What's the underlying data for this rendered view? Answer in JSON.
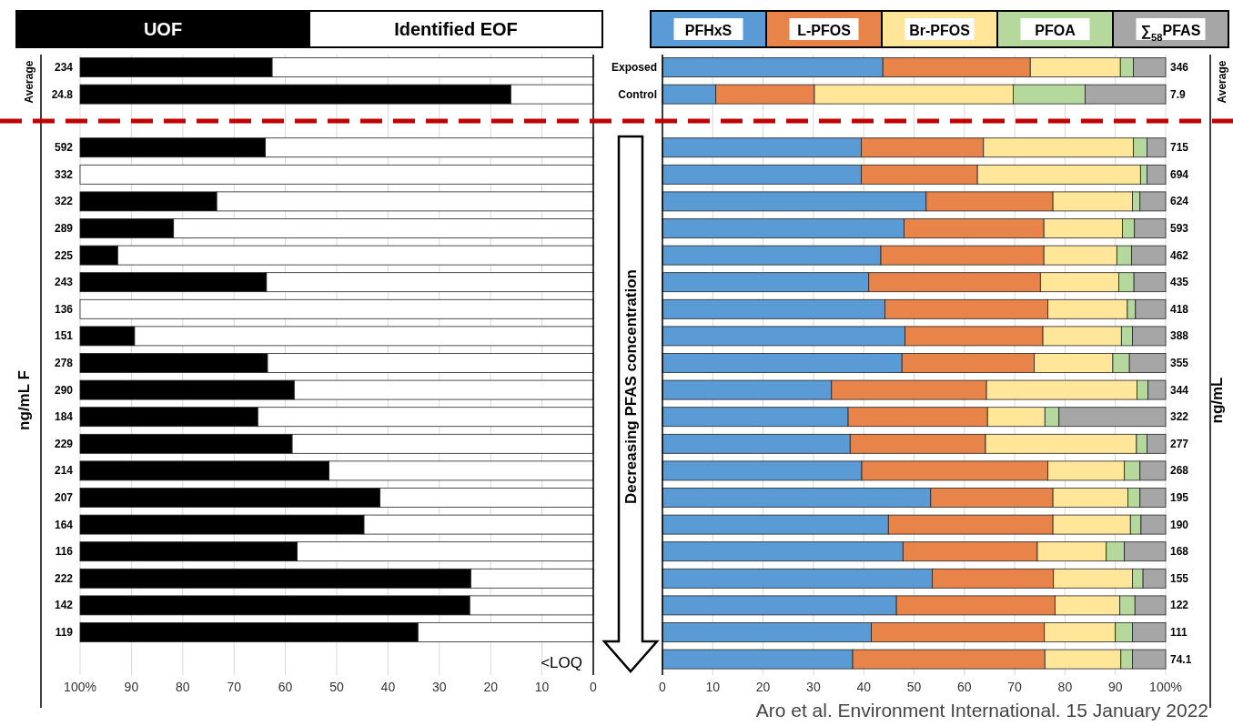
{
  "chart_data": [
    {
      "type": "bar",
      "orientation": "horizontal",
      "stacked": true,
      "ylabel": "ng/mL F",
      "legend": "top",
      "grid": "x",
      "categories": [
        "234",
        "24.8",
        "592",
        "332",
        "322",
        "289",
        "225",
        "243",
        "136",
        "151",
        "278",
        "290",
        "184",
        "229",
        "214",
        "207",
        "164",
        "116",
        "222",
        "142",
        "119",
        null
      ],
      "series": [
        {
          "name": "Identified EOF",
          "color": "#ffffff",
          "values": [
            62.6,
            16.1,
            63.9,
            100,
            73.4,
            81.8,
            92.7,
            63.7,
            100,
            89.4,
            63.5,
            58.3,
            65.4,
            58.7,
            51.5,
            41.6,
            44.7,
            57.7,
            23.9,
            24.1,
            34.2,
            null
          ]
        },
        {
          "name": "UOF",
          "color": "#000000",
          "values": [
            37.4,
            83.9,
            36.1,
            0,
            26.6,
            18.2,
            7.3,
            36.3,
            0,
            10.6,
            36.5,
            41.7,
            34.6,
            41.3,
            48.5,
            58.4,
            55.3,
            42.3,
            76.1,
            75.9,
            65.8,
            null
          ]
        }
      ],
      "xlim": [
        100,
        0
      ],
      "xticks": [
        {
          "value": 100,
          "label": "100%"
        },
        90,
        80,
        70,
        60,
        50,
        40,
        30,
        20,
        10,
        0
      ],
      "annotations": [
        "Average",
        "<LOQ"
      ]
    },
    {
      "type": "bar",
      "orientation": "horizontal",
      "stacked": true,
      "ylabel": "ng/mL",
      "legend": "top",
      "grid": "x",
      "categories": [
        "346",
        "7.9",
        "715",
        "694",
        "624",
        "593",
        "462",
        "435",
        "418",
        "388",
        "355",
        "344",
        "322",
        "277",
        "268",
        "195",
        "190",
        "168",
        "155",
        "122",
        "111",
        "74.1"
      ],
      "series": [
        {
          "name": "PFHxS",
          "color": "#5b9bd5",
          "values": [
            43.8,
            10.6,
            39.5,
            39.5,
            52.4,
            48.0,
            43.4,
            41.0,
            44.2,
            48.2,
            47.6,
            33.6,
            36.9,
            37.3,
            39.6,
            53.3,
            44.9,
            47.8,
            53.6,
            46.5,
            41.5,
            37.8
          ]
        },
        {
          "name": "L-PFOS",
          "color": "#e8834a",
          "values": [
            29.3,
            19.6,
            24.3,
            23.1,
            25.2,
            27.8,
            32.4,
            34.1,
            32.4,
            27.4,
            26.3,
            30.8,
            27.7,
            26.9,
            37.0,
            24.3,
            32.7,
            26.7,
            24.1,
            31.5,
            34.4,
            38.2
          ]
        },
        {
          "name": "Br-PFOS",
          "color": "#ffe699",
          "values": [
            17.9,
            39.5,
            29.8,
            32.4,
            15.8,
            15.6,
            14.5,
            15.6,
            15.8,
            15.6,
            15.6,
            29.9,
            11.4,
            30.0,
            15.2,
            14.9,
            15.4,
            13.7,
            15.7,
            12.9,
            14.1,
            15.1
          ]
        },
        {
          "name": "PFOA",
          "color": "#b5d99c",
          "values": [
            2.6,
            14.3,
            2.7,
            1.3,
            1.5,
            2.4,
            2.9,
            3.0,
            1.6,
            2.2,
            3.3,
            2.2,
            2.8,
            2.1,
            3.1,
            2.4,
            2.1,
            3.6,
            2.1,
            3.0,
            3.4,
            2.3
          ]
        },
        {
          "name": "∑$_{58}$PFAS",
          "color": "#a6a6a6",
          "values": [
            6.4,
            16.0,
            3.7,
            3.7,
            5.1,
            6.2,
            6.8,
            6.3,
            6.0,
            6.6,
            7.2,
            3.5,
            21.2,
            3.7,
            5.1,
            5.1,
            4.9,
            8.2,
            4.5,
            6.1,
            6.6,
            6.6
          ]
        }
      ],
      "xlim": [
        0,
        100
      ],
      "xticks": [
        0,
        10,
        20,
        30,
        40,
        50,
        60,
        70,
        80,
        90,
        {
          "value": 100,
          "label": "100%"
        }
      ],
      "annotations": [
        "Exposed",
        "Control",
        "Average",
        "Decreasing PFAS concentration",
        "Aro et al. Environment International. 15 January 2022"
      ]
    }
  ]
}
